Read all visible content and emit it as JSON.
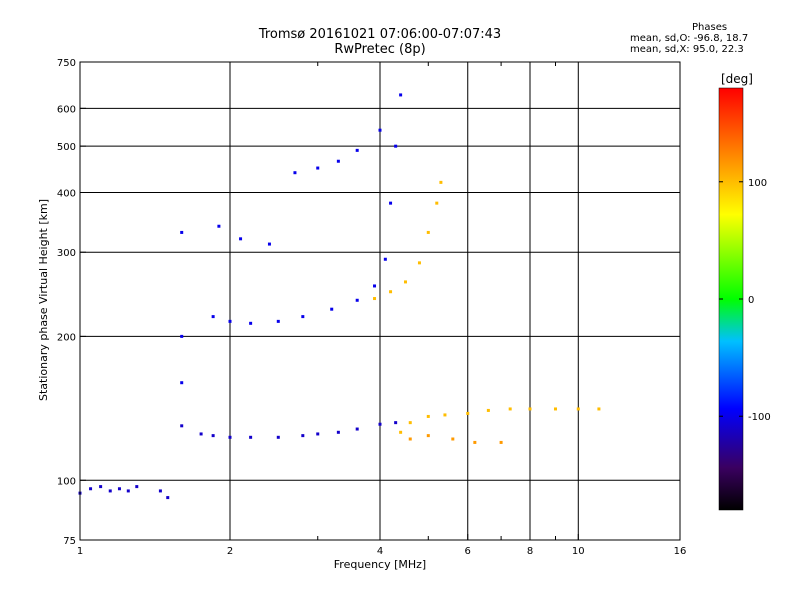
{
  "chart_data": {
    "type": "scatter",
    "title": "Tromsø 20161021 07:06:00-07:07:43",
    "subtitle": "RwPretec (8p)",
    "xlabel": "Frequency [MHz]",
    "ylabel": "Stationary phase Virtual Height [km]",
    "x_scale": "log",
    "y_scale": "log",
    "xlim": [
      1,
      16
    ],
    "ylim": [
      75,
      750
    ],
    "x_ticks": [
      1,
      2,
      4,
      6,
      8,
      10,
      16
    ],
    "x_minor_ticks": [
      3,
      5,
      7,
      9
    ],
    "y_ticks": [
      75,
      100,
      200,
      300,
      400,
      500,
      600,
      750
    ],
    "grid": true,
    "legend": {
      "title": "Phases",
      "lines": [
        "mean, sd,O: -96.8, 18.7",
        "mean, sd,X: 95.0, 22.3"
      ]
    },
    "colorbar": {
      "label": "[deg]",
      "range": [
        -180,
        180
      ],
      "ticks": [
        -100,
        0,
        100
      ],
      "colormap": [
        "#000000",
        "#3a0060",
        "#0000ff",
        "#00c0ff",
        "#00ff00",
        "#ffff00",
        "#ff8000",
        "#ff0000"
      ]
    },
    "series": [
      {
        "phase": -110,
        "points": [
          [
            1.0,
            94
          ],
          [
            1.05,
            96
          ],
          [
            1.1,
            97
          ],
          [
            1.15,
            95
          ],
          [
            1.2,
            96
          ],
          [
            1.25,
            95
          ],
          [
            1.3,
            97
          ],
          [
            1.45,
            95
          ],
          [
            1.5,
            92
          ],
          [
            1.6,
            130
          ],
          [
            1.75,
            125
          ],
          [
            1.85,
            124
          ],
          [
            2.0,
            123
          ],
          [
            2.2,
            123
          ],
          [
            2.5,
            123
          ],
          [
            2.8,
            124
          ],
          [
            3.0,
            125
          ],
          [
            3.3,
            126
          ],
          [
            3.6,
            128
          ],
          [
            4.0,
            131
          ],
          [
            4.3,
            132
          ]
        ]
      },
      {
        "phase": -100,
        "points": [
          [
            1.6,
            330
          ],
          [
            1.6,
            200
          ],
          [
            1.6,
            160
          ],
          [
            1.85,
            220
          ],
          [
            2.0,
            215
          ],
          [
            2.2,
            213
          ],
          [
            2.5,
            215
          ],
          [
            2.8,
            220
          ],
          [
            3.2,
            228
          ],
          [
            3.6,
            238
          ],
          [
            3.9,
            255
          ],
          [
            4.1,
            290
          ],
          [
            4.2,
            380
          ],
          [
            4.3,
            500
          ],
          [
            4.4,
            640
          ]
        ]
      },
      {
        "phase": -100,
        "points": [
          [
            1.9,
            340
          ],
          [
            2.1,
            320
          ],
          [
            2.4,
            312
          ],
          [
            2.7,
            440
          ],
          [
            3.0,
            450
          ],
          [
            3.3,
            465
          ],
          [
            3.6,
            490
          ],
          [
            4.0,
            540
          ]
        ]
      },
      {
        "phase": 100,
        "points": [
          [
            3.9,
            240
          ],
          [
            4.2,
            248
          ],
          [
            4.5,
            260
          ],
          [
            4.8,
            285
          ],
          [
            5.0,
            330
          ],
          [
            5.2,
            380
          ],
          [
            5.3,
            420
          ]
        ]
      },
      {
        "phase": 100,
        "points": [
          [
            4.4,
            126
          ],
          [
            4.6,
            132
          ],
          [
            5.0,
            136
          ],
          [
            5.4,
            137
          ],
          [
            6.0,
            138
          ],
          [
            6.6,
            140
          ],
          [
            7.3,
            141
          ],
          [
            8.0,
            141
          ],
          [
            9.0,
            141
          ],
          [
            10.0,
            141
          ],
          [
            11.0,
            141
          ]
        ]
      },
      {
        "phase": 115,
        "points": [
          [
            4.6,
            122
          ],
          [
            5.0,
            124
          ],
          [
            5.6,
            122
          ],
          [
            6.2,
            120
          ],
          [
            7.0,
            120
          ]
        ]
      }
    ]
  }
}
